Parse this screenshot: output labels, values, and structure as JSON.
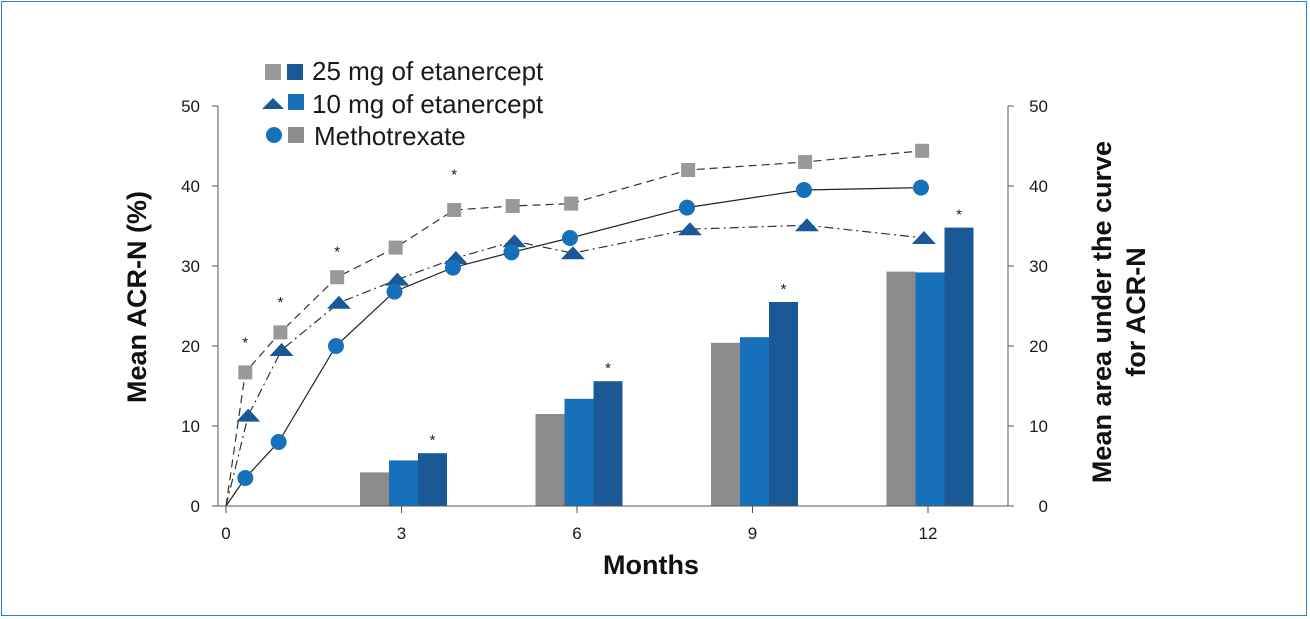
{
  "chart_data": {
    "type": "line+bar",
    "xlabel": "Months",
    "ylabel_left": "Mean ACR-N (%)",
    "ylabel_right_line1": "Mean area under the curve",
    "ylabel_right_line2": "for ACR-N",
    "x_ticks": [
      "0",
      "3",
      "6",
      "9",
      "12"
    ],
    "y_ticks_left": [
      "0",
      "10",
      "20",
      "30",
      "40",
      "50"
    ],
    "y_ticks_right": [
      "0",
      "10",
      "20",
      "30",
      "40",
      "50"
    ],
    "xlim": [
      0,
      13
    ],
    "ylim_left": [
      0,
      50
    ],
    "ylim_right": [
      0,
      50
    ],
    "legend": [
      {
        "label": "25 mg of etanercept",
        "line_marker": "square",
        "line_color": "#999999",
        "bar_color": "#1b5896"
      },
      {
        "label": "10 mg of etanercept",
        "line_marker": "triangle",
        "line_color": "#1b5896",
        "bar_color": "#1670ba"
      },
      {
        "label": "Methotrexate",
        "line_marker": "circle",
        "line_color": "#1670ba",
        "bar_color": "#8c8c8c"
      }
    ],
    "line_series": [
      {
        "name": "25 mg of etanercept",
        "marker": "square",
        "dash": "8,5",
        "color": "#999999",
        "points": [
          [
            0,
            0
          ],
          [
            0.33,
            16.7
          ],
          [
            0.93,
            21.7
          ],
          [
            1.9,
            28.6
          ],
          [
            2.9,
            32.3
          ],
          [
            3.9,
            37
          ],
          [
            4.9,
            37.5
          ],
          [
            5.9,
            37.8
          ],
          [
            7.9,
            42
          ],
          [
            9.9,
            43
          ],
          [
            11.9,
            44.4
          ]
        ]
      },
      {
        "name": "10 mg of etanercept",
        "marker": "triangle",
        "dash": "9,4,2,4",
        "color": "#1b5896",
        "points": [
          [
            0,
            0
          ],
          [
            0.38,
            11.3
          ],
          [
            0.95,
            19.5
          ],
          [
            1.93,
            25.4
          ],
          [
            2.93,
            28.3
          ],
          [
            3.93,
            31
          ],
          [
            4.93,
            33.1
          ],
          [
            5.93,
            31.6
          ],
          [
            7.93,
            34.6
          ],
          [
            9.93,
            35.1
          ],
          [
            11.93,
            33.5
          ]
        ]
      },
      {
        "name": "Methotrexate",
        "marker": "circle",
        "dash": "",
        "color": "#1670ba",
        "points": [
          [
            0,
            0
          ],
          [
            0.33,
            3.5
          ],
          [
            0.9,
            8
          ],
          [
            1.88,
            20
          ],
          [
            2.88,
            26.8
          ],
          [
            3.88,
            29.8
          ],
          [
            4.88,
            31.7
          ],
          [
            5.88,
            33.5
          ],
          [
            7.88,
            37.3
          ],
          [
            9.88,
            39.5
          ],
          [
            11.88,
            39.8
          ]
        ]
      }
    ],
    "bar_groups": [
      {
        "month": 3,
        "values": [
          {
            "name": "Methotrexate",
            "value": 4.2
          },
          {
            "name": "10 mg of etanercept",
            "value": 5.7
          },
          {
            "name": "25 mg of etanercept",
            "value": 6.6
          }
        ],
        "significant": true
      },
      {
        "month": 6,
        "values": [
          {
            "name": "Methotrexate",
            "value": 11.5
          },
          {
            "name": "10 mg of etanercept",
            "value": 13.4
          },
          {
            "name": "25 mg of etanercept",
            "value": 15.6
          }
        ],
        "significant": true
      },
      {
        "month": 9,
        "values": [
          {
            "name": "Methotrexate",
            "value": 20.4
          },
          {
            "name": "10 mg of etanercept",
            "value": 21.1
          },
          {
            "name": "25 mg of etanercept",
            "value": 25.5
          }
        ],
        "significant": true
      },
      {
        "month": 12,
        "values": [
          {
            "name": "Methotrexate",
            "value": 29.3
          },
          {
            "name": "10 mg of etanercept",
            "value": 29.2
          },
          {
            "name": "25 mg of etanercept",
            "value": 34.8
          }
        ],
        "significant": true
      }
    ],
    "significance_marker": "*",
    "line_significance_months": [
      0.33,
      0.93,
      1.9,
      3.9
    ],
    "line_significance_values": [
      19.8,
      24.9,
      31.2,
      40.8
    ],
    "bar_colors": {
      "Methotrexate": "#8c8c8c",
      "10 mg of etanercept": "#1670ba",
      "25 mg of etanercept": "#1b5896"
    }
  }
}
